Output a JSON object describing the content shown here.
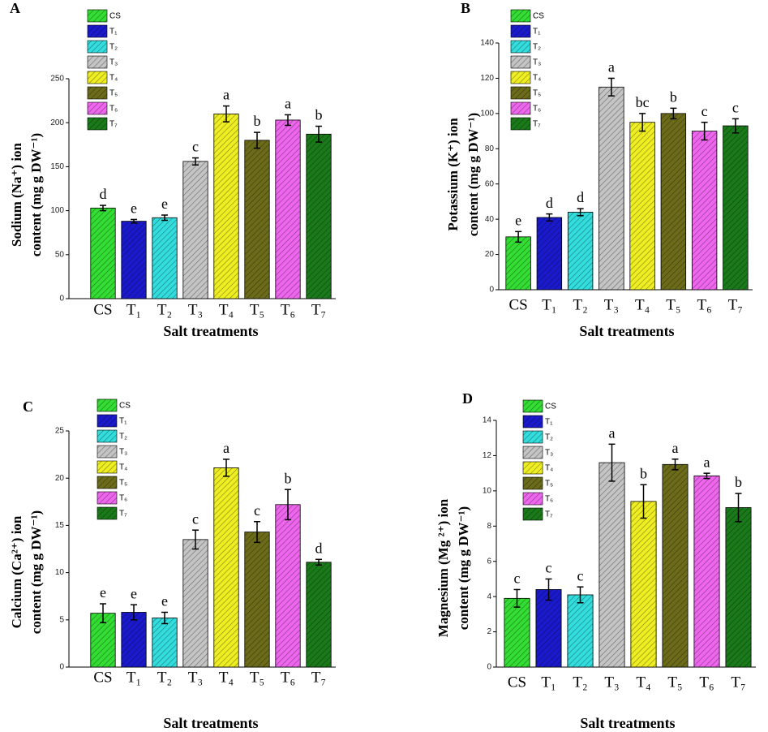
{
  "chart_data": [
    {
      "type": "bar",
      "panel_label": "A",
      "ylabel": [
        "Sodium (Na⁺) ion",
        "content (mg g DW⁻¹)"
      ],
      "xlabel": "Salt treatments",
      "categories": [
        "CS",
        "T₁",
        "T₂",
        "T₃",
        "T₄",
        "T₅",
        "T₆",
        "T₇"
      ],
      "colors": [
        "#33dd33",
        "#1a1acc",
        "#33dddd",
        "#c4c4c4",
        "#eeee22",
        "#6b6b1a",
        "#ee66ee",
        "#1a7a1a"
      ],
      "values": [
        103,
        88,
        92,
        156,
        210,
        180,
        203,
        187
      ],
      "errors": [
        3,
        2,
        3,
        4,
        9,
        9,
        6,
        9
      ],
      "letters": [
        "d",
        "e",
        "e",
        "c",
        "a",
        "b",
        "a",
        "b"
      ],
      "ylim": [
        0,
        250
      ],
      "yticks": [
        0,
        50,
        100,
        150,
        200,
        250
      ]
    },
    {
      "type": "bar",
      "panel_label": "B",
      "ylabel": [
        "Potassium (K⁺) ion",
        "content (mg g DW⁻¹)"
      ],
      "xlabel": "Salt treatments",
      "categories": [
        "CS",
        "T₁",
        "T₂",
        "T₃",
        "T₄",
        "T₅",
        "T₆",
        "T₇"
      ],
      "colors": [
        "#33dd33",
        "#1a1acc",
        "#33dddd",
        "#c4c4c4",
        "#eeee22",
        "#6b6b1a",
        "#ee66ee",
        "#1a7a1a"
      ],
      "values": [
        30,
        41,
        44,
        115,
        95,
        100,
        90,
        93
      ],
      "errors": [
        3,
        2,
        2,
        5,
        5,
        3,
        5,
        4
      ],
      "letters": [
        "e",
        "d",
        "d",
        "a",
        "bc",
        "b",
        "c",
        "c"
      ],
      "ylim": [
        0,
        140
      ],
      "yticks": [
        0,
        20,
        40,
        60,
        80,
        100,
        120,
        140
      ]
    },
    {
      "type": "bar",
      "panel_label": "C",
      "ylabel": [
        "Calcium (Ca²⁺) ion",
        "content (mg g DW⁻¹)"
      ],
      "xlabel": "Salt treatments",
      "categories": [
        "CS",
        "T₁",
        "T₂",
        "T₃",
        "T₄",
        "T₅",
        "T₆",
        "T₇"
      ],
      "colors": [
        "#33dd33",
        "#1a1acc",
        "#33dddd",
        "#c4c4c4",
        "#eeee22",
        "#6b6b1a",
        "#ee66ee",
        "#1a7a1a"
      ],
      "values": [
        5.7,
        5.8,
        5.2,
        13.5,
        21.1,
        14.3,
        17.2,
        11.1
      ],
      "errors": [
        1.0,
        0.8,
        0.6,
        1.0,
        0.9,
        1.1,
        1.6,
        0.3
      ],
      "letters": [
        "e",
        "e",
        "e",
        "c",
        "a",
        "c",
        "b",
        "d"
      ],
      "ylim": [
        0,
        25
      ],
      "yticks": [
        0,
        5,
        10,
        15,
        20,
        25
      ]
    },
    {
      "type": "bar",
      "panel_label": "D",
      "ylabel": [
        "Magnesium (Mg ²⁺)  ion",
        "content (mg g DW⁻¹)"
      ],
      "xlabel": "Salt treatments",
      "categories": [
        "CS",
        "T₁",
        "T₂",
        "T₃",
        "T₄",
        "T₅",
        "T₆",
        "T₇"
      ],
      "colors": [
        "#33dd33",
        "#1a1acc",
        "#33dddd",
        "#c4c4c4",
        "#eeee22",
        "#6b6b1a",
        "#ee66ee",
        "#1a7a1a"
      ],
      "values": [
        3.9,
        4.4,
        4.1,
        11.6,
        9.4,
        11.5,
        10.85,
        9.05
      ],
      "errors": [
        0.5,
        0.6,
        0.45,
        1.05,
        0.95,
        0.3,
        0.15,
        0.8
      ],
      "letters": [
        "c",
        "c",
        "c",
        "a",
        "b",
        "a",
        "a",
        "b"
      ],
      "ylim": [
        0,
        14
      ],
      "yticks": [
        0,
        2,
        4,
        6,
        8,
        10,
        12,
        14
      ]
    }
  ]
}
